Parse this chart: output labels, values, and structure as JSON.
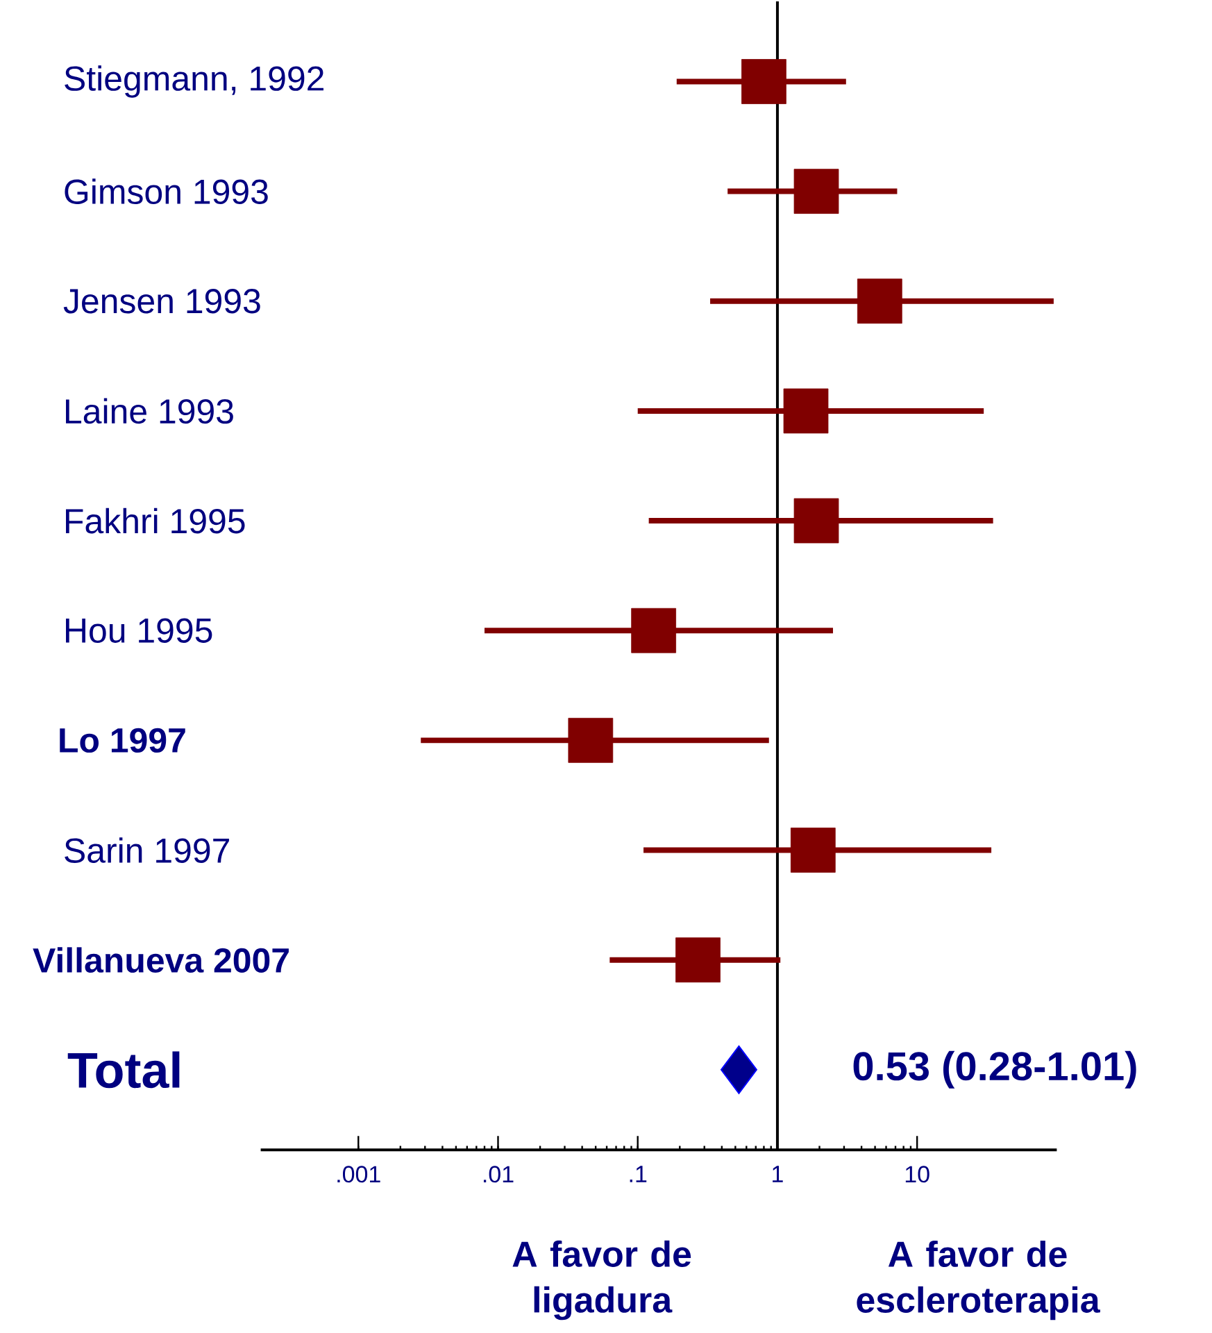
{
  "chart_data": {
    "type": "scatter",
    "orientation": "horizontal",
    "log": "x",
    "categories": [
      "Stiegmann, 1992",
      "Gimson 1993",
      "Jensen 1993",
      "Laine 1993",
      "Fakhri 1995",
      "Hou 1995",
      "Lo 1997",
      "Sarin 1997",
      "Villanueva 2007",
      "Total"
    ],
    "xlim": [
      0.0002,
      100
    ],
    "xticks": [
      {
        "value": 0.001,
        "label": ".001"
      },
      {
        "value": 0.01,
        "label": ".01"
      },
      {
        "value": 0.1,
        "label": ".1"
      },
      1,
      10
    ],
    "series": [
      {
        "marker": "square",
        "color": "#800000",
        "values": [
          0.8,
          1.9,
          5.4,
          1.6,
          1.9,
          0.13,
          0.046,
          1.8,
          0.27,
          null
        ],
        "errors": [
          [
            0.19,
            3.1
          ],
          [
            0.44,
            7.2
          ],
          [
            0.33,
            95
          ],
          [
            0.1,
            30
          ],
          [
            0.12,
            35
          ],
          [
            0.008,
            2.5
          ],
          [
            0.0028,
            0.87
          ],
          [
            0.11,
            34
          ],
          [
            0.063,
            1.05
          ],
          null
        ]
      },
      {
        "marker": "diamond",
        "color": "#00008b",
        "values": [
          null,
          null,
          null,
          null,
          null,
          null,
          null,
          null,
          null,
          0.53
        ],
        "value_labels": [
          null,
          null,
          null,
          null,
          null,
          null,
          null,
          null,
          null,
          "0.53 (0.28-1.01)"
        ]
      }
    ],
    "ref_lines": [
      {
        "axis": "x",
        "value": 1,
        "color": "#000000"
      }
    ],
    "annotations": [
      "A favor de ligadura",
      "A favor de escleroterapia"
    ]
  }
}
